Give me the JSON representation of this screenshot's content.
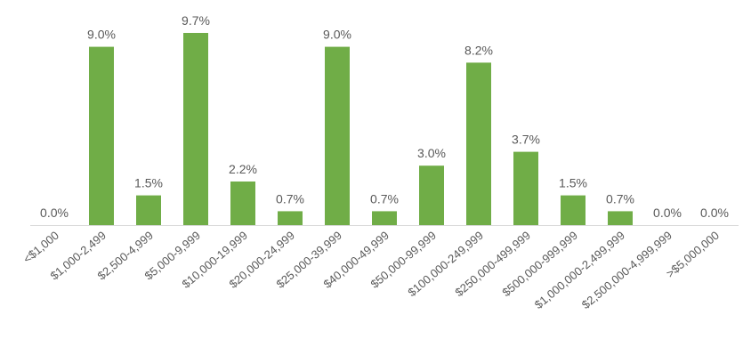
{
  "chart_data": {
    "type": "bar",
    "categories": [
      "<$1,000",
      "$1,000-2,499",
      "$2,500-4,999",
      "$5,000-9,999",
      "$10,000-19,999",
      "$20,000-24,999",
      "$25,000-39,999",
      "$40,000-49,999",
      "$50,000-99,999",
      "$100,000-249,999",
      "$250,000-499,999",
      "$500,000-999,999",
      "$1,000,000-2,499,999",
      "$2,500,000-4,999,999",
      ">$5,000,000"
    ],
    "values": [
      0.0,
      9.0,
      1.5,
      9.7,
      2.2,
      0.7,
      9.0,
      0.7,
      3.0,
      8.2,
      3.7,
      1.5,
      0.7,
      0.0,
      0.0
    ],
    "labels": [
      "0.0%",
      "9.0%",
      "1.5%",
      "9.7%",
      "2.2%",
      "0.7%",
      "9.0%",
      "0.7%",
      "3.0%",
      "8.2%",
      "3.7%",
      "1.5%",
      "0.7%",
      "0.0%",
      "0.0%"
    ],
    "ylim": [
      0,
      10
    ],
    "grid": false,
    "legend": "none",
    "bar_color": "#70ad47"
  }
}
